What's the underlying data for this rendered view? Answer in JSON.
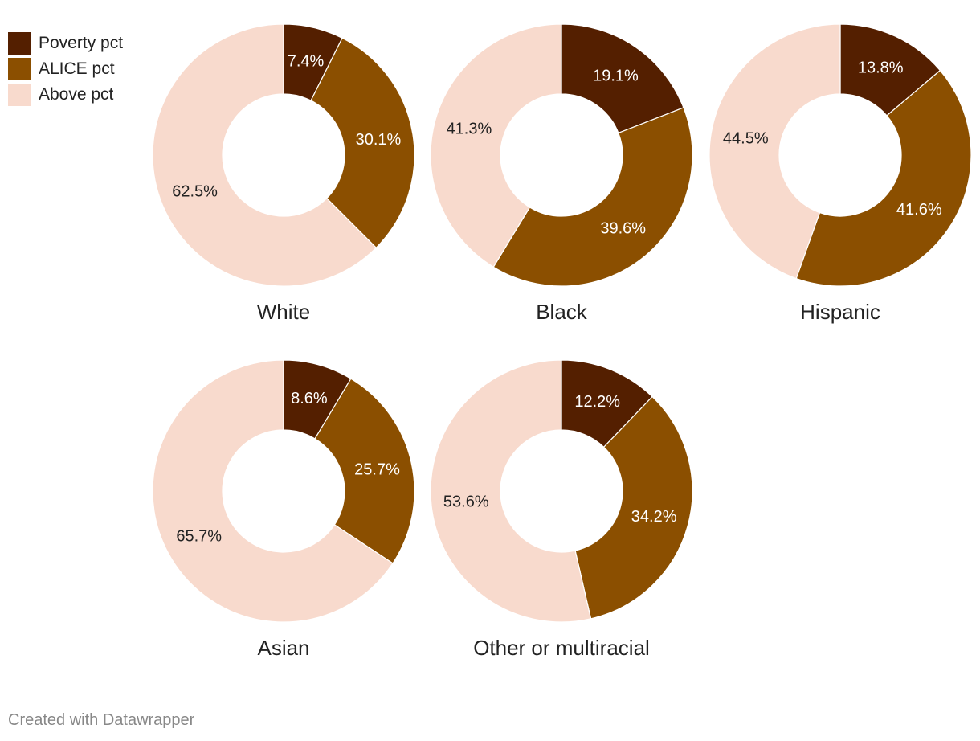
{
  "colors": {
    "poverty": "#541f00",
    "alice": "#8b4f00",
    "above": "#f8dacd"
  },
  "legend": [
    {
      "label": "Poverty pct",
      "color": "#541f00"
    },
    {
      "label": "ALICE pct",
      "color": "#8b4f00"
    },
    {
      "label": "Above pct",
      "color": "#f8dacd"
    }
  ],
  "chart_data": [
    {
      "type": "pie",
      "group": "White",
      "categories": [
        "Poverty pct",
        "ALICE pct",
        "Above pct"
      ],
      "values": [
        7.4,
        30.1,
        62.5
      ],
      "labels": [
        "7.4%",
        "30.1%",
        "62.5%"
      ]
    },
    {
      "type": "pie",
      "group": "Black",
      "categories": [
        "Poverty pct",
        "ALICE pct",
        "Above pct"
      ],
      "values": [
        19.1,
        39.6,
        41.3
      ],
      "labels": [
        "19.1%",
        "39.6%",
        "41.3%"
      ]
    },
    {
      "type": "pie",
      "group": "Hispanic",
      "categories": [
        "Poverty pct",
        "ALICE pct",
        "Above pct"
      ],
      "values": [
        13.8,
        41.6,
        44.5
      ],
      "labels": [
        "13.8%",
        "41.6%",
        "44.5%"
      ]
    },
    {
      "type": "pie",
      "group": "Asian",
      "categories": [
        "Poverty pct",
        "ALICE pct",
        "Above pct"
      ],
      "values": [
        8.6,
        25.7,
        65.7
      ],
      "labels": [
        "8.6%",
        "25.7%",
        "65.7%"
      ]
    },
    {
      "type": "pie",
      "group": "Other or multiracial",
      "categories": [
        "Poverty pct",
        "ALICE pct",
        "Above pct"
      ],
      "values": [
        12.2,
        34.2,
        53.6
      ],
      "labels": [
        "12.2%",
        "34.2%",
        "53.6%"
      ]
    }
  ],
  "footer": {
    "text": "Created with Datawrapper"
  }
}
